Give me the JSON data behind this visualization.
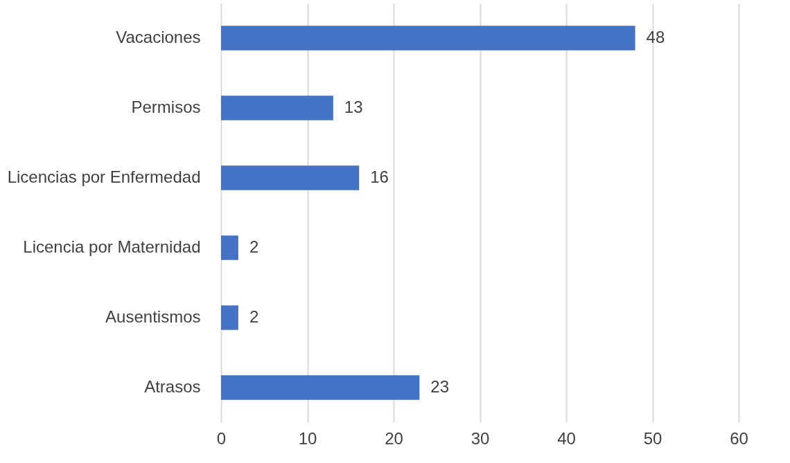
{
  "chart_data": {
    "type": "bar",
    "orientation": "horizontal",
    "categories": [
      "Vacaciones",
      "Permisos",
      "Licencias por Enfermedad",
      "Licencia por Maternidad",
      "Ausentismos",
      "Atrasos"
    ],
    "values": [
      48,
      13,
      16,
      2,
      2,
      23
    ],
    "color": "#4472c4",
    "xlim": [
      0,
      60
    ],
    "xticks": [
      0,
      10,
      20,
      30,
      40,
      50,
      60
    ],
    "grid": "x",
    "data_labels": true
  }
}
